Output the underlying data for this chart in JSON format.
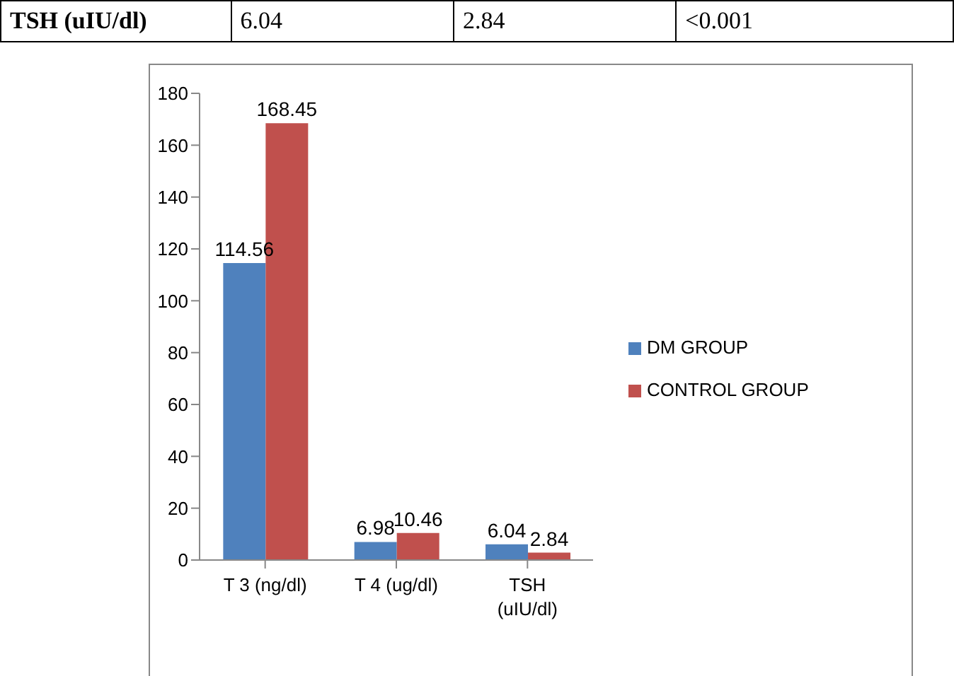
{
  "chart_data": {
    "type": "bar",
    "annotations": [
      "TSH (uIU/dl)",
      "6.04",
      "2.84",
      "<0.001"
    ],
    "categories": [
      "T 3 (ng/dl)",
      "T 4 (ug/dl)",
      "TSH (uIU/dl)"
    ],
    "series": [
      {
        "name": "DM GROUP",
        "color": "#4f81bd",
        "values": [
          114.56,
          6.98,
          6.04
        ]
      },
      {
        "name": "CONTROL GROUP",
        "color": "#c0504d",
        "values": [
          168.45,
          10.46,
          2.84
        ]
      }
    ],
    "ylim": [
      0,
      180
    ],
    "yticks": [
      0,
      20,
      40,
      60,
      80,
      100,
      120,
      140,
      160,
      180
    ],
    "data_labels": true,
    "legend": "right",
    "grid": false
  }
}
